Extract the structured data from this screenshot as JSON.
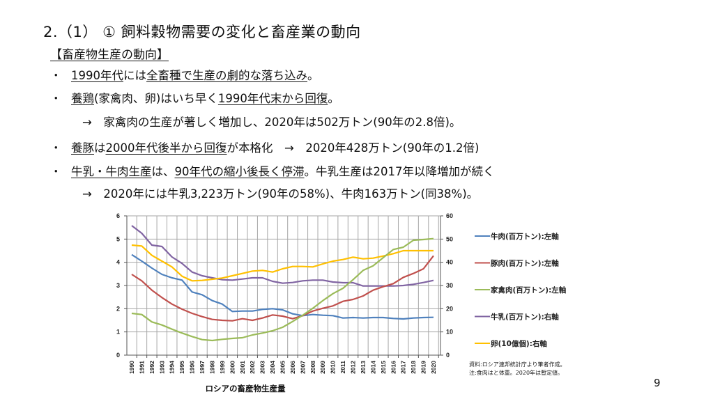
{
  "header": {
    "title": "2.（1） ①  飼料穀物需要の変化と畜産業の動向",
    "subtitle": "【畜産物生産の動向】"
  },
  "bullets": [
    {
      "marker": "・",
      "parts": [
        {
          "text": "1990年代",
          "u": true
        },
        {
          "text": "には",
          "u": false
        },
        {
          "text": "全畜種で生産の劇的な落ち込み",
          "u": true
        },
        {
          "text": "。",
          "u": false
        }
      ]
    },
    {
      "marker": "・",
      "parts": [
        {
          "text": "養鶏",
          "u": true
        },
        {
          "text": "(家禽肉、卵)はいち早く",
          "u": false
        },
        {
          "text": "1990年代末から回復",
          "u": true
        },
        {
          "text": "。",
          "u": false
        }
      ]
    },
    {
      "marker": "・",
      "parts": [
        {
          "text": "養豚",
          "u": true
        },
        {
          "text": "は",
          "u": false
        },
        {
          "text": "2000年代後半から回復",
          "u": true
        },
        {
          "text": "が本格化　→　2020年428万トン(90年の1.2倍)",
          "u": false
        }
      ]
    },
    {
      "marker": "・",
      "parts": [
        {
          "text": "牛乳・牛肉生産",
          "u": true
        },
        {
          "text": "は、",
          "u": false
        },
        {
          "text": "90年代の縮小後長く停滞",
          "u": true
        },
        {
          "text": "。牛乳生産は2017年以降増加が続く",
          "u": false
        }
      ]
    }
  ],
  "subpoints": [
    "→　家禽肉の生産が著しく増加し、2020年は502万トン(90年の2.8倍)。",
    "→　2020年には牛乳3,223万トン(90年の58%)、牛肉163万トン(同38%)。"
  ],
  "page_number": "9",
  "chart_data": {
    "type": "line",
    "title": "ロシアの畜産物生産量",
    "xlabel": "",
    "ylabel_left": "",
    "ylabel_right": "",
    "x": [
      1990,
      1991,
      1992,
      1993,
      1994,
      1995,
      1996,
      1997,
      1998,
      1999,
      2000,
      2001,
      2002,
      2003,
      2004,
      2005,
      2006,
      2007,
      2008,
      2009,
      2010,
      2011,
      2012,
      2013,
      2014,
      2015,
      2016,
      2017,
      2018,
      2019,
      2020
    ],
    "ylim_left": [
      0,
      6
    ],
    "ylim_right": [
      0,
      60
    ],
    "yticks_left": [
      "0",
      "1",
      "2",
      "3",
      "4",
      "5",
      "6"
    ],
    "yticks_right": [
      "0",
      "10",
      "20",
      "30",
      "40",
      "50",
      "60"
    ],
    "grid": true,
    "legend_position": "right",
    "series": [
      {
        "name": "牛肉(百万トン):左軸",
        "axis": "left",
        "color": "#4f81bd",
        "values": [
          4.33,
          4.05,
          3.75,
          3.48,
          3.33,
          3.23,
          2.72,
          2.6,
          2.35,
          2.2,
          1.88,
          1.9,
          1.9,
          1.97,
          2.0,
          1.95,
          1.78,
          1.7,
          1.75,
          1.72,
          1.7,
          1.6,
          1.62,
          1.6,
          1.62,
          1.62,
          1.58,
          1.56,
          1.6,
          1.62,
          1.63
        ]
      },
      {
        "name": "豚肉(百万トン):左軸",
        "axis": "left",
        "color": "#c0504d",
        "values": [
          3.48,
          3.2,
          2.8,
          2.48,
          2.2,
          1.98,
          1.8,
          1.66,
          1.54,
          1.5,
          1.48,
          1.57,
          1.5,
          1.6,
          1.73,
          1.68,
          1.57,
          1.7,
          1.9,
          2.02,
          2.12,
          2.32,
          2.4,
          2.55,
          2.8,
          2.95,
          3.08,
          3.35,
          3.52,
          3.72,
          4.28
        ]
      },
      {
        "name": "家禽肉(百万トン):左軸",
        "axis": "left",
        "color": "#9bbb59",
        "values": [
          1.8,
          1.75,
          1.43,
          1.3,
          1.12,
          0.95,
          0.8,
          0.67,
          0.63,
          0.68,
          0.72,
          0.75,
          0.87,
          0.95,
          1.05,
          1.2,
          1.45,
          1.72,
          2.02,
          2.35,
          2.65,
          2.88,
          3.25,
          3.65,
          3.85,
          4.2,
          4.55,
          4.65,
          4.95,
          4.98,
          5.02
        ]
      },
      {
        "name": "牛乳(百万トン):右軸",
        "axis": "right",
        "color": "#8064a2",
        "values": [
          55.8,
          52.5,
          47.4,
          46.8,
          42.3,
          39.5,
          35.8,
          34.2,
          33.3,
          32.5,
          32.3,
          32.8,
          33.3,
          33.3,
          31.8,
          31.0,
          31.3,
          32.0,
          32.3,
          32.3,
          31.5,
          31.2,
          31.2,
          29.8,
          29.8,
          29.8,
          29.8,
          30.0,
          30.5,
          31.3,
          32.2
        ]
      },
      {
        "name": "卵(10億個):右軸",
        "axis": "right",
        "color": "#ffc000",
        "values": [
          47.4,
          47.0,
          43.0,
          40.5,
          38.0,
          34.0,
          32.0,
          32.2,
          32.7,
          33.2,
          34.2,
          35.2,
          36.2,
          36.5,
          35.8,
          37.2,
          38.2,
          38.2,
          38.0,
          39.3,
          40.5,
          41.2,
          42.2,
          41.5,
          41.8,
          42.7,
          43.7,
          45.0,
          45.0,
          45.0,
          45.0
        ]
      }
    ],
    "notes": [
      "資料:ロシア連邦統計庁より筆者作成。",
      "注:食肉はと体重。2020年は暫定値。"
    ]
  }
}
